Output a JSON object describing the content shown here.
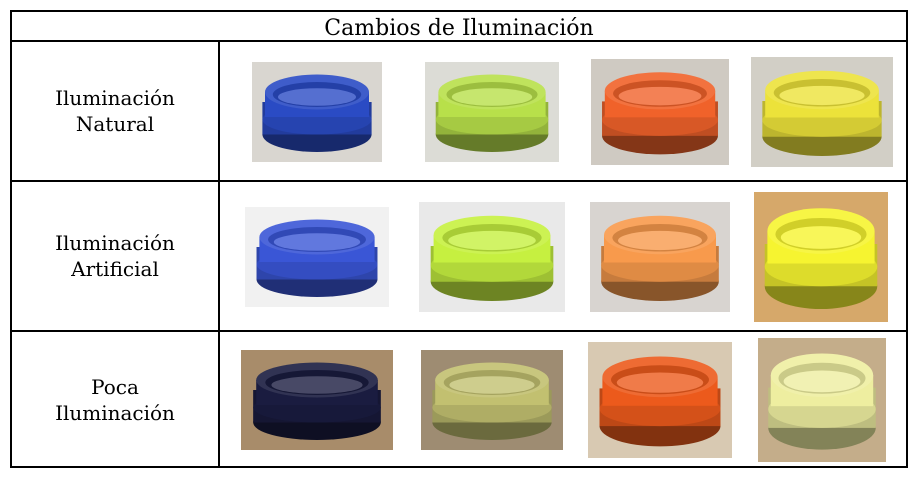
{
  "table": {
    "title": "Cambios de Iluminación",
    "rows": [
      {
        "label_line1": "Iluminación",
        "label_line2": "Natural",
        "photos": [
          {
            "icon": "blue-container-lid-photo",
            "color": "#2a4bc4",
            "bg": "#d9d6d0"
          },
          {
            "icon": "lime-container-lid-photo",
            "color": "#b8e04a",
            "bg": "#dcdcd6"
          },
          {
            "icon": "orange-container-lid-photo",
            "color": "#f0622a",
            "bg": "#cfcac2"
          },
          {
            "icon": "yellow-container-lid-photo",
            "color": "#ece23a",
            "bg": "#d2cfc6"
          }
        ]
      },
      {
        "label_line1": "Iluminación",
        "label_line2": "Artificial",
        "photos": [
          {
            "icon": "blue-container-lid-photo",
            "color": "#3a56d6",
            "bg": "#f1f1f1"
          },
          {
            "icon": "lime-container-lid-photo",
            "color": "#c6f040",
            "bg": "#e9e9e9"
          },
          {
            "icon": "orange-container-lid-photo",
            "color": "#f89a4c",
            "bg": "#d8d4d0"
          },
          {
            "icon": "yellow-container-lid-photo",
            "color": "#f6f430",
            "bg": "#d6a86a"
          }
        ]
      },
      {
        "label_line1": "Poca",
        "label_line2": "Iluminación",
        "photos": [
          {
            "icon": "navy-container-lid-photo",
            "color": "#1a1c40",
            "bg": "#a88c6a"
          },
          {
            "icon": "olive-container-lid-photo",
            "color": "#c2c070",
            "bg": "#9e8c72"
          },
          {
            "icon": "orange-container-lid-photo",
            "color": "#ec5a1c",
            "bg": "#d8c9b2"
          },
          {
            "icon": "cream-container-lid-photo",
            "color": "#eeeea0",
            "bg": "#c4ad8a"
          }
        ]
      }
    ]
  }
}
